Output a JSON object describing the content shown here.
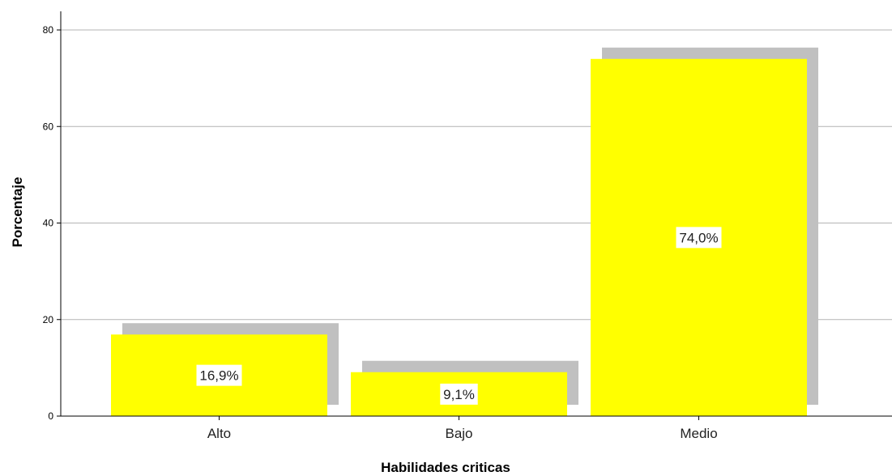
{
  "chart_data": {
    "type": "bar",
    "title": "",
    "xlabel": "Habilidades criticas",
    "ylabel": "Porcentaje",
    "categories": [
      "Alto",
      "Bajo",
      "Medio"
    ],
    "values": [
      16.9,
      9.1,
      74.0
    ],
    "data_labels": [
      "16,9%",
      "9,1%",
      "74,0%"
    ],
    "ylim": [
      0,
      80
    ],
    "yticks": [
      "0",
      "20",
      "40",
      "60",
      "80"
    ],
    "grid": true,
    "legend": "none",
    "bar_color": "#ffff00",
    "shadow_color": "#c0c0c0",
    "grid_color": "#b3b3b3"
  }
}
